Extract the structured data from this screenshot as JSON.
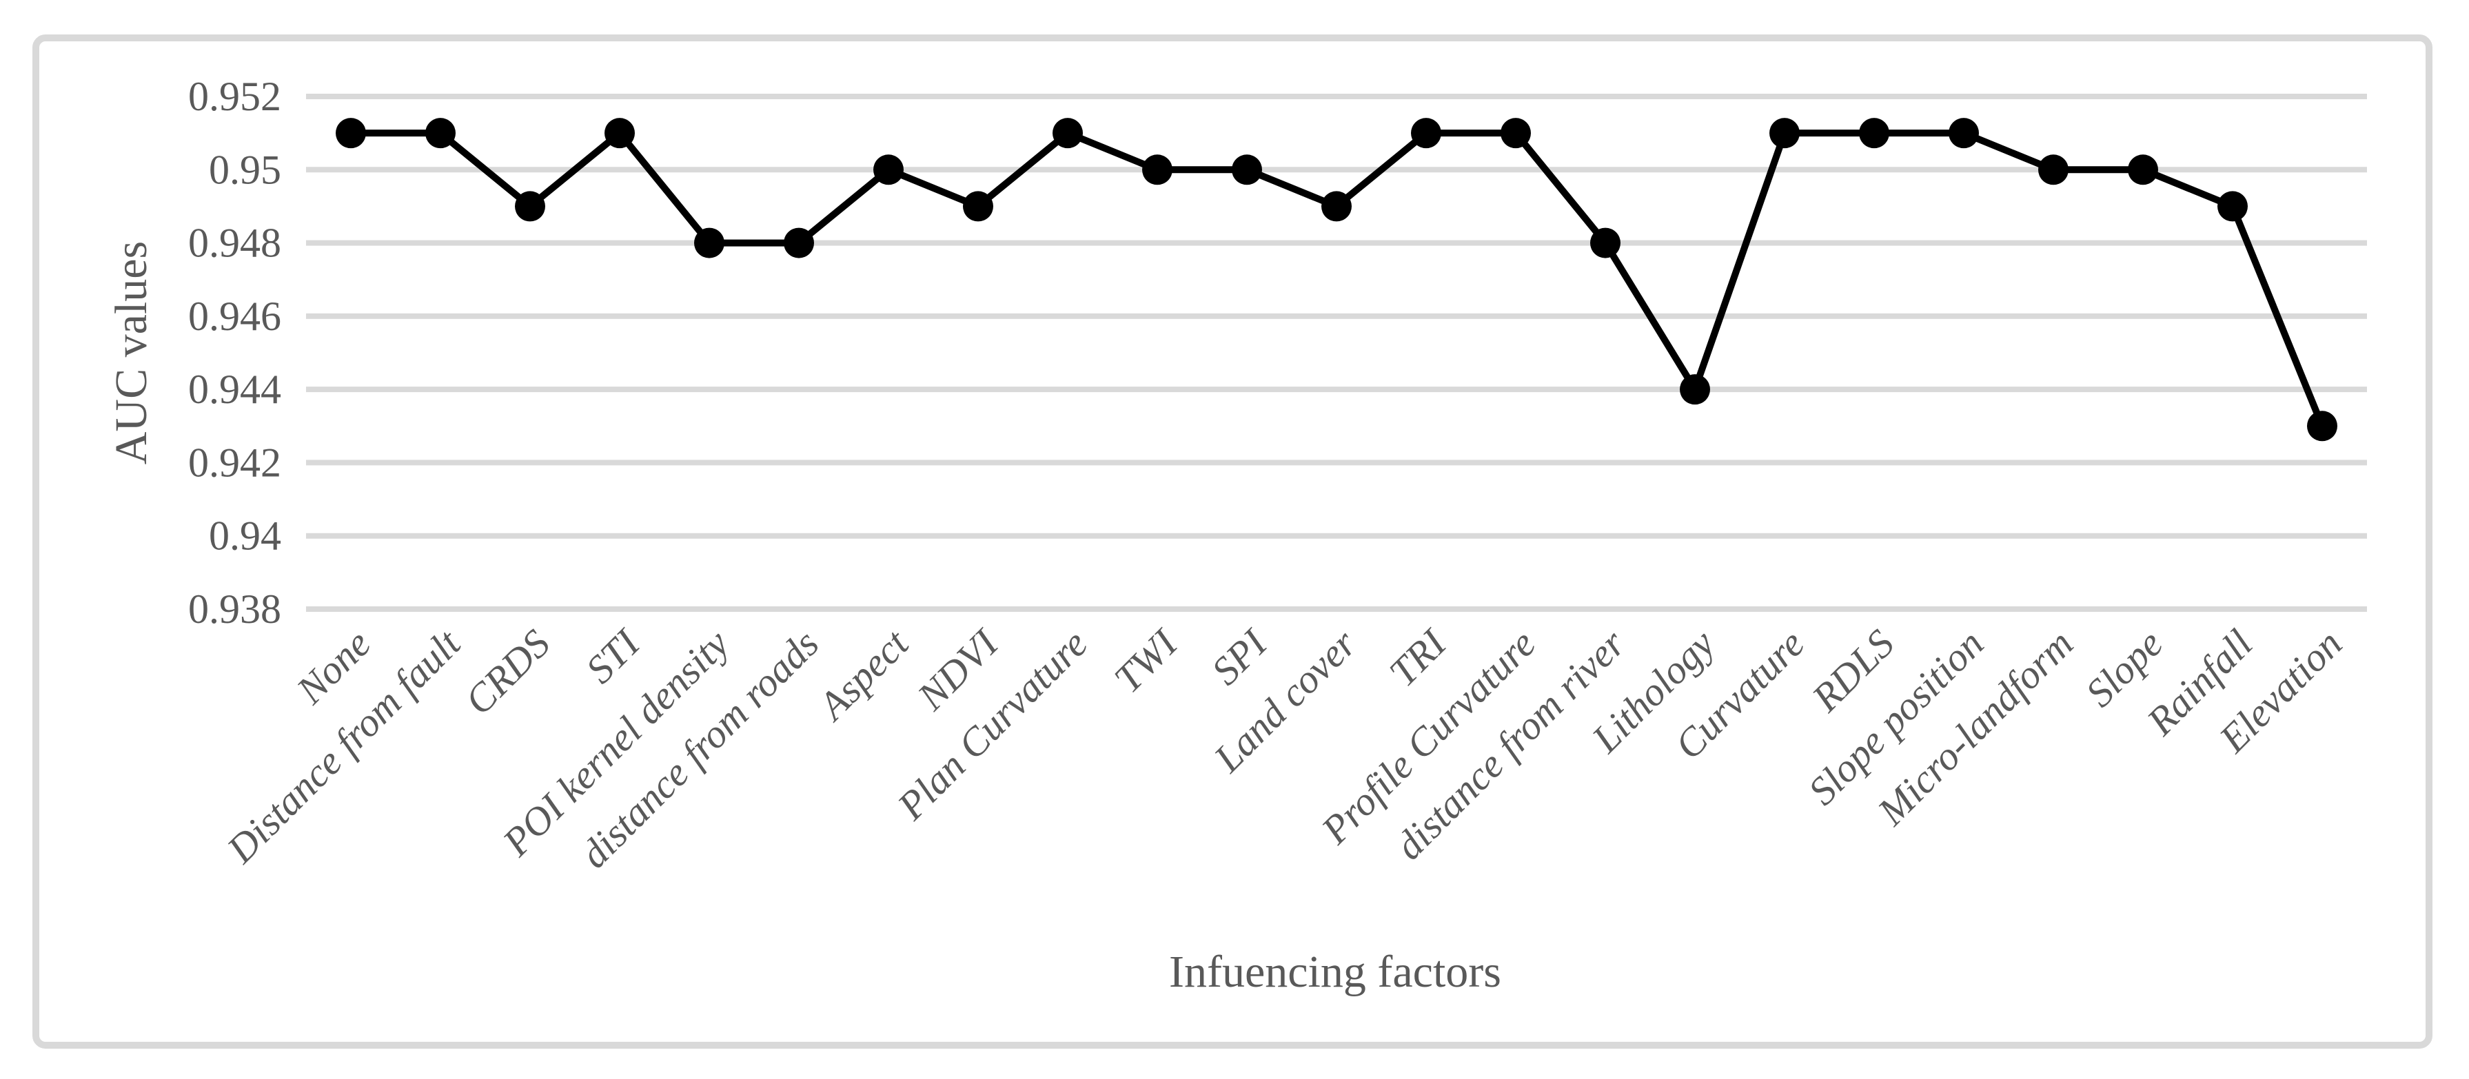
{
  "chart_data": {
    "type": "line",
    "title": "",
    "xlabel": "Infuencing factors",
    "ylabel": "AUC values",
    "series_count": 1,
    "legend_position": "none",
    "grid": true,
    "marker": "filled-circle",
    "categories": [
      "None",
      "Distance from fault",
      "CRDS",
      "STI",
      "POI kernel density",
      "distance from roads",
      "Aspect",
      "NDVI",
      "Plan Curvature",
      "TWI",
      "SPI",
      "Land cover",
      "TRI",
      "Profile Curvature",
      "distance from river",
      "Lithology",
      "Curvature",
      "RDLS",
      "Slope position",
      "Micro-landform",
      "Slope",
      "Rainfall",
      "Elevation"
    ],
    "values": [
      0.951,
      0.951,
      0.949,
      0.951,
      0.948,
      0.948,
      0.95,
      0.949,
      0.951,
      0.95,
      0.95,
      0.949,
      0.951,
      0.951,
      0.948,
      0.944,
      0.951,
      0.951,
      0.951,
      0.95,
      0.95,
      0.949,
      0.943
    ],
    "ylim": [
      0.938,
      0.952
    ],
    "yticks": [
      {
        "value": 0.952,
        "label": "0.952"
      },
      {
        "value": 0.95,
        "label": "0.95"
      },
      {
        "value": 0.948,
        "label": "0.948"
      },
      {
        "value": 0.946,
        "label": "0.946"
      },
      {
        "value": 0.944,
        "label": "0.944"
      },
      {
        "value": 0.942,
        "label": "0.942"
      },
      {
        "value": 0.94,
        "label": "0.94"
      },
      {
        "value": 0.938,
        "label": "0.938"
      }
    ],
    "colors": {
      "line": "#000000",
      "marker": "#000000",
      "gridline": "#d9d9d9",
      "chart_border": "#d9d9d9",
      "text": "#595959",
      "background": "#ffffff"
    }
  }
}
